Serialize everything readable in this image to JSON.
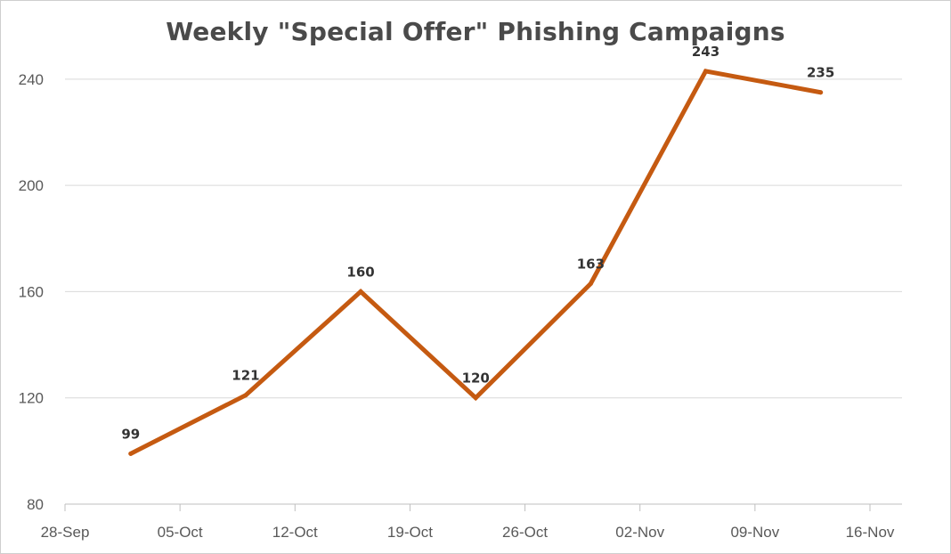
{
  "chart_data": {
    "type": "line",
    "title": "Weekly \"Special Offer\" Phishing Campaigns",
    "xlabel": "",
    "ylabel": "",
    "x_ticks": [
      "28-Sep",
      "05-Oct",
      "12-Oct",
      "19-Oct",
      "26-Oct",
      "02-Nov",
      "09-Nov",
      "16-Nov"
    ],
    "y_ticks": [
      80,
      120,
      160,
      200,
      240
    ],
    "ylim": [
      80,
      250
    ],
    "grid": "horizontal",
    "legend": "none",
    "x": [
      "2020-10-02",
      "2020-10-09",
      "2020-10-16",
      "2020-10-23",
      "2020-10-30",
      "2020-11-06",
      "2020-11-13"
    ],
    "series": [
      {
        "values": [
          99,
          121,
          160,
          120,
          163,
          243,
          235
        ],
        "color": "#c55a11"
      }
    ]
  }
}
